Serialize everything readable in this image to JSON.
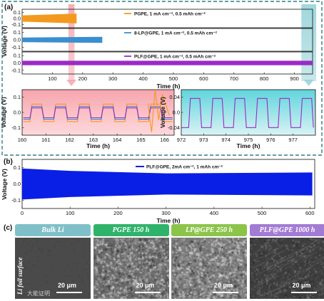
{
  "panels": {
    "a": "(a)",
    "b": "(b)",
    "c": "(c)"
  },
  "chart_data": [
    {
      "id": "a-top",
      "type": "line",
      "xlabel": "Time (h)",
      "ylabel": "Voltage (V)",
      "xlim": [
        0,
        960
      ],
      "xticks": [
        100,
        200,
        300,
        400,
        500,
        600,
        700,
        800,
        900
      ],
      "series": [
        {
          "name": "PGPE, 1 mA cm⁻², 0.5 mAh cm⁻²",
          "color": "#f39a1e",
          "x_range": [
            0,
            180
          ],
          "band_amplitude_V": [
            0.05,
            0.08
          ],
          "yticks": [
            0.1,
            0.0,
            -0.1
          ]
        },
        {
          "name": "8-LP@GPE, 1 mA cm⁻², 0.5 mAh cm⁻²",
          "color": "#3a8fd0",
          "x_range": [
            0,
            265
          ],
          "band_amplitude_V": [
            0.03,
            0.04
          ],
          "yticks": [
            0.1,
            0.0,
            -0.1
          ]
        },
        {
          "name": "PLF@GPE, 1 mA cm⁻², 0.5 mAh cm⁻²",
          "color": "#9b2bc4",
          "x_range": [
            0,
            960
          ],
          "band_amplitude_V": [
            0.03,
            0.03
          ],
          "yticks": [
            0.1,
            0.0,
            -0.1
          ]
        }
      ],
      "highlights": [
        {
          "x_range": [
            160,
            166
          ],
          "color": "#f4a0a8"
        },
        {
          "x_range": [
            930,
            965
          ],
          "color": "#8fd0d6"
        }
      ]
    },
    {
      "id": "a-inset-left",
      "type": "line",
      "xlabel": "Time (h)",
      "ylabel": "Voltage (V)",
      "xlim": [
        160,
        166.4
      ],
      "ylim": [
        -0.15,
        0.15
      ],
      "xticks": [
        160,
        161,
        162,
        163,
        164,
        165,
        166
      ],
      "yticks": [
        0.1,
        0.0,
        -0.1
      ],
      "cycle_period_h": 1,
      "series": [
        {
          "color": "#f39a1e",
          "high": 0.055,
          "low": -0.06
        },
        {
          "color": "#3a8fd0",
          "high": 0.04,
          "low": -0.045
        },
        {
          "color": "#9b2bc4",
          "high": 0.03,
          "low": -0.035
        }
      ],
      "annotation": {
        "x_range": [
          165.3,
          166.2
        ],
        "series_color": "#f39a1e",
        "max": 0.15,
        "min": -0.13
      }
    },
    {
      "id": "a-inset-right",
      "type": "line",
      "xlabel": "Time (h)",
      "ylabel": "Voltage (V)",
      "xlim": [
        972,
        978
      ],
      "ylim": [
        -0.06,
        0.06
      ],
      "xticks": [
        972,
        973,
        974,
        975,
        976,
        977
      ],
      "yticks": [
        0.04,
        0.0,
        -0.04
      ],
      "cycle_period_h": 1,
      "series": [
        {
          "color": "#9b2bc4",
          "high": 0.037,
          "low": -0.04
        }
      ]
    },
    {
      "id": "b",
      "type": "line",
      "xlabel": "Time (h)",
      "ylabel": "Voltage (V)",
      "xlim": [
        0,
        610
      ],
      "ylim": [
        -0.15,
        0.15
      ],
      "xticks": [
        0,
        100,
        200,
        300,
        400,
        500,
        600
      ],
      "yticks": [
        0.1,
        0.0,
        -0.1
      ],
      "series": [
        {
          "name": "PLF@GPE, 2mA cm⁻², 1 mAh cm⁻²",
          "color": "#0a1fe6",
          "envelope": [
            {
              "x": 0,
              "amp": 0.095
            },
            {
              "x": 100,
              "amp": 0.08
            },
            {
              "x": 300,
              "amp": 0.065
            },
            {
              "x": 605,
              "amp": 0.07
            }
          ]
        }
      ]
    }
  ],
  "sem": {
    "side_label": "Li foil surface",
    "watermark": "大能证明",
    "scale_bar": "20 μm",
    "photos": [
      {
        "title": "Bulk Li",
        "header_color": "#7fc0c8",
        "texture": "smooth",
        "base_color": "#4a4a4a"
      },
      {
        "title": "PGPE 150 h",
        "header_color": "#2fb36b",
        "texture": "rough",
        "base_color": "#6b6b6b"
      },
      {
        "title": "LP@GPE 250 h",
        "header_color": "#8cc44a",
        "texture": "rough",
        "base_color": "#7a7a7a"
      },
      {
        "title": "PLF@GPE 1000 h",
        "header_color": "#a27bd4",
        "texture": "streaked",
        "base_color": "#3d3d3d"
      }
    ]
  }
}
